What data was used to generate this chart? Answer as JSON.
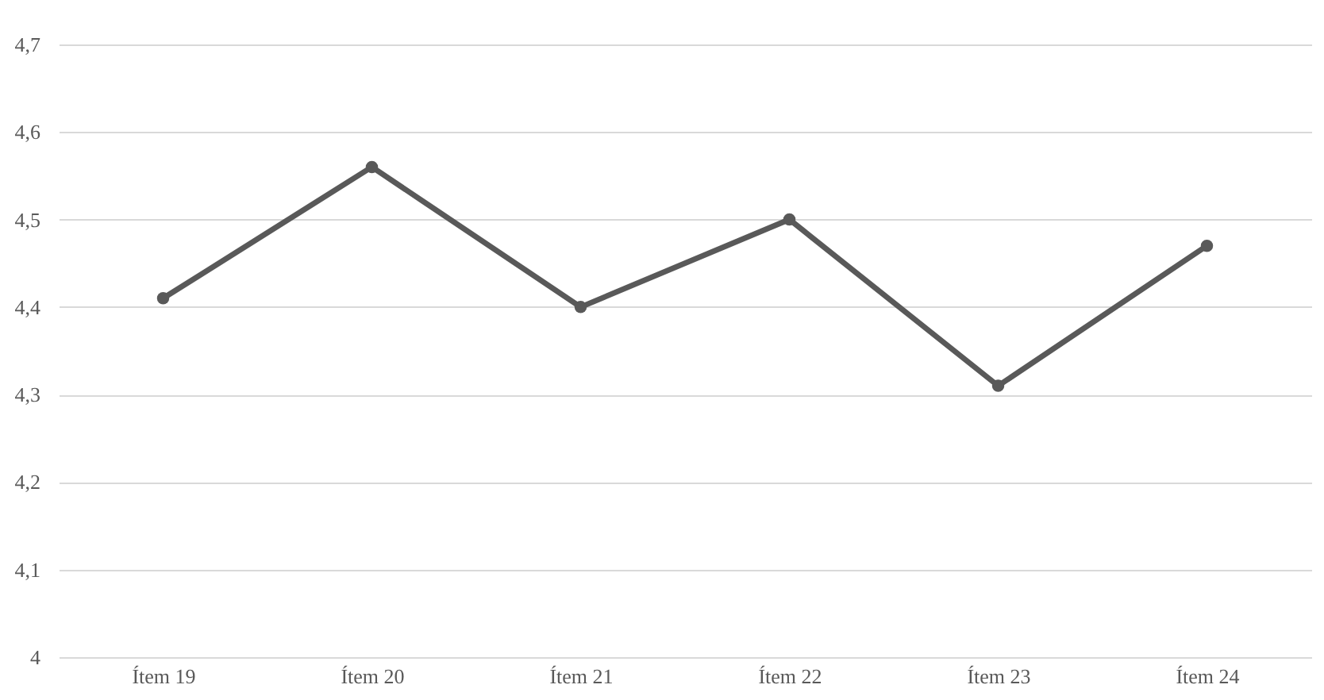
{
  "chart_data": {
    "type": "line",
    "categories": [
      "Ítem 19",
      "Ítem 20",
      "Ítem 21",
      "Ítem 22",
      "Ítem 23",
      "Ítem 24"
    ],
    "series": [
      {
        "color": "#595959",
        "values": [
          4.41,
          4.56,
          4.4,
          4.5,
          4.31,
          4.47
        ]
      }
    ],
    "ylim": [
      4.0,
      4.7
    ],
    "yticks": [
      4,
      {
        "value": 4.1,
        "label": "4,1"
      },
      {
        "value": 4.2,
        "label": "4,2"
      },
      {
        "value": 4.3,
        "label": "4,3"
      },
      {
        "value": 4.4,
        "label": "4,4"
      },
      {
        "value": 4.5,
        "label": "4,5"
      },
      {
        "value": 4.6,
        "label": "4,6"
      },
      {
        "value": 4.7,
        "label": "4,7"
      }
    ],
    "grid": "y",
    "marker": "circle",
    "line_style": "solid"
  }
}
